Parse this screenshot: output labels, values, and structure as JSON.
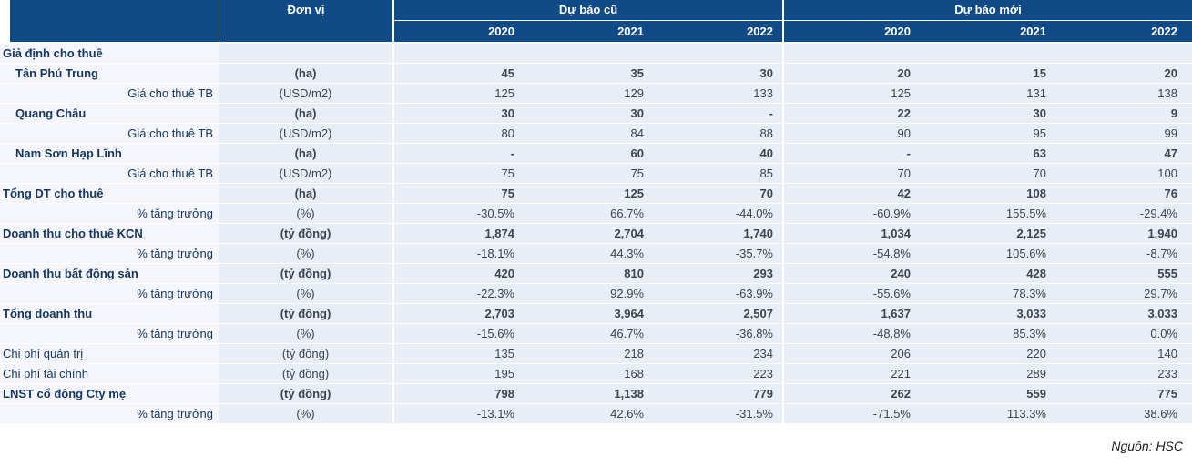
{
  "header": {
    "unit_label": "Đơn vị",
    "groups": [
      {
        "label": "Dự báo cũ",
        "years": [
          "2020",
          "2021",
          "2022"
        ]
      },
      {
        "label": "Dự báo mới",
        "years": [
          "2020",
          "2021",
          "2022"
        ]
      }
    ]
  },
  "colors": {
    "navy": "#114B87",
    "cell_bg": "#E9EDF5",
    "label_bg": "#F4F6FB",
    "text_label": "#16355F",
    "text_value": "#3E4450"
  },
  "rows": [
    {
      "label": "Giả định cho thuê",
      "unit": "",
      "bold": true,
      "indent": "none",
      "old": [
        "",
        "",
        ""
      ],
      "new": [
        "",
        "",
        ""
      ]
    },
    {
      "label": "Tân Phú Trung",
      "unit": "(ha)",
      "bold": true,
      "indent": "sub",
      "old": [
        "45",
        "35",
        "30"
      ],
      "new": [
        "20",
        "15",
        "20"
      ]
    },
    {
      "label": "Giá cho thuê TB",
      "unit": "(USD/m2)",
      "bold": false,
      "align": "right",
      "old": [
        "125",
        "129",
        "133"
      ],
      "new": [
        "125",
        "131",
        "138"
      ]
    },
    {
      "label": "Quang Châu",
      "unit": "(ha)",
      "bold": true,
      "indent": "sub",
      "old": [
        "30",
        "30",
        "-"
      ],
      "new": [
        "22",
        "30",
        "9"
      ]
    },
    {
      "label": "Giá cho thuê TB",
      "unit": "(USD/m2)",
      "bold": false,
      "align": "right",
      "old": [
        "80",
        "84",
        "88"
      ],
      "new": [
        "90",
        "95",
        "99"
      ]
    },
    {
      "label": "Nam Sơn Hạp Lĩnh",
      "unit": "(ha)",
      "bold": true,
      "indent": "sub",
      "old": [
        "-",
        "60",
        "40"
      ],
      "new": [
        "-",
        "63",
        "47"
      ]
    },
    {
      "label": "Giá cho thuê TB",
      "unit": "(USD/m2)",
      "bold": false,
      "align": "right",
      "old": [
        "75",
        "75",
        "85"
      ],
      "new": [
        "70",
        "70",
        "100"
      ]
    },
    {
      "label": "Tổng DT cho thuê",
      "unit": "(ha)",
      "bold": true,
      "indent": "none",
      "old": [
        "75",
        "125",
        "70"
      ],
      "new": [
        "42",
        "108",
        "76"
      ]
    },
    {
      "label": "% tăng trưởng",
      "unit": "(%)",
      "bold": false,
      "align": "right",
      "old": [
        "-30.5%",
        "66.7%",
        "-44.0%"
      ],
      "new": [
        "-60.9%",
        "155.5%",
        "-29.4%"
      ]
    },
    {
      "label": "Doanh thu cho thuê KCN",
      "unit": "(tỷ đồng)",
      "bold": true,
      "indent": "none",
      "old": [
        "1,874",
        "2,704",
        "1,740"
      ],
      "new": [
        "1,034",
        "2,125",
        "1,940"
      ]
    },
    {
      "label": "% tăng trưởng",
      "unit": "(%)",
      "bold": false,
      "align": "right",
      "old": [
        "-18.1%",
        "44.3%",
        "-35.7%"
      ],
      "new": [
        "-54.8%",
        "105.6%",
        "-8.7%"
      ]
    },
    {
      "label": "Doanh thu bất động sản",
      "unit": "(tỷ đồng)",
      "bold": true,
      "indent": "none",
      "old": [
        "420",
        "810",
        "293"
      ],
      "new": [
        "240",
        "428",
        "555"
      ]
    },
    {
      "label": "% tăng trưởng",
      "unit": "(%)",
      "bold": false,
      "align": "right",
      "old": [
        "-22.3%",
        "92.9%",
        "-63.9%"
      ],
      "new": [
        "-55.6%",
        "78.3%",
        "29.7%"
      ]
    },
    {
      "label": "Tổng doanh thu",
      "unit": "(tỷ đồng)",
      "bold": true,
      "indent": "none",
      "old": [
        "2,703",
        "3,964",
        "2,507"
      ],
      "new": [
        "1,637",
        "3,033",
        "3,033"
      ]
    },
    {
      "label": "% tăng trưởng",
      "unit": "(%)",
      "bold": false,
      "align": "right",
      "old": [
        "-15.6%",
        "46.7%",
        "-36.8%"
      ],
      "new": [
        "-48.8%",
        "85.3%",
        "0.0%"
      ]
    },
    {
      "label": "Chi phí quản trị",
      "unit": "(tỷ đồng)",
      "bold": false,
      "indent": "none",
      "old": [
        "135",
        "218",
        "234"
      ],
      "new": [
        "206",
        "220",
        "140"
      ]
    },
    {
      "label": "Chi phí tài chính",
      "unit": "(tỷ đồng)",
      "bold": false,
      "indent": "none",
      "old": [
        "195",
        "168",
        "223"
      ],
      "new": [
        "221",
        "289",
        "233"
      ]
    },
    {
      "label": "LNST cổ đông Cty mẹ",
      "unit": "(tỷ đồng)",
      "bold": true,
      "indent": "none",
      "old": [
        "798",
        "1,138",
        "779"
      ],
      "new": [
        "262",
        "559",
        "775"
      ]
    },
    {
      "label": "% tăng trưởng",
      "unit": "(%)",
      "bold": false,
      "align": "right",
      "old": [
        "-13.1%",
        "42.6%",
        "-31.5%"
      ],
      "new": [
        "-71.5%",
        "113.3%",
        "38.6%"
      ]
    }
  ],
  "source": {
    "text": "Nguồn: HSC"
  }
}
